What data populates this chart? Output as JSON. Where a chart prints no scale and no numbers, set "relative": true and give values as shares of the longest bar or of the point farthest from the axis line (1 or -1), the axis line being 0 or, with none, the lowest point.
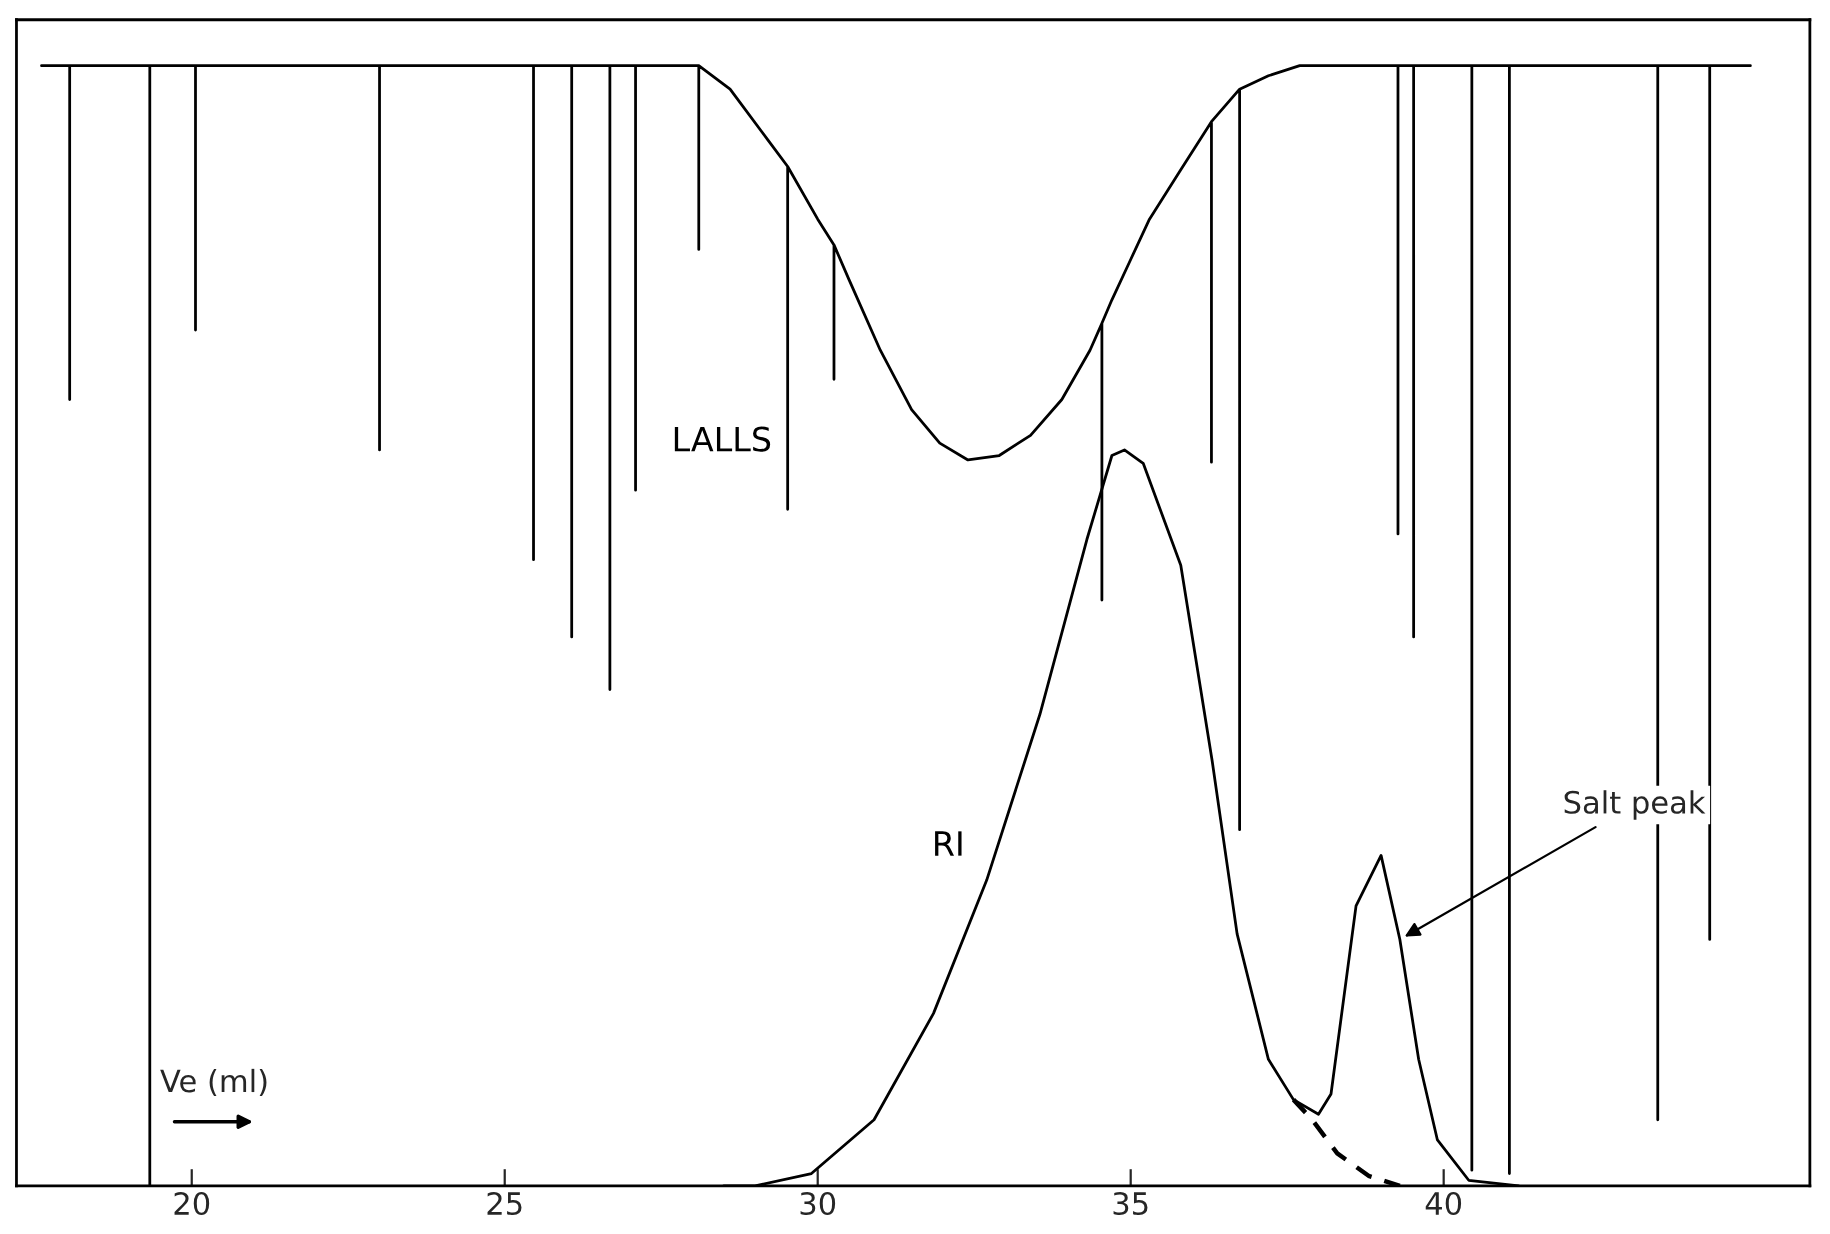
{
  "chart_data": {
    "type": "line",
    "relative": true,
    "xlabel": "Ve (ml)",
    "xlim": [
      17.2,
      45.85
    ],
    "xticks": [
      20,
      25,
      30,
      35,
      40
    ],
    "series": [
      {
        "name": "LALLS",
        "color": "#000000",
        "x": [
          17.6,
          18.05,
          18.05,
          18.05,
          19.33,
          19.33,
          19.33,
          20.06,
          20.06,
          20.06,
          23.0,
          23.0,
          23.0,
          25.46,
          25.46,
          25.46,
          26.07,
          26.07,
          26.07,
          26.68,
          26.68,
          26.68,
          27.09,
          27.09,
          27.09,
          27.96,
          28.1,
          28.1,
          28.1,
          28.6,
          29.2,
          29.52,
          29.52,
          29.52,
          30.0,
          30.26,
          30.26,
          30.26,
          30.5,
          31.0,
          31.5,
          31.95,
          32.4,
          32.9,
          33.4,
          33.9,
          34.35,
          34.54,
          34.54,
          34.54,
          34.7,
          35.0,
          35.3,
          35.8,
          36.29,
          36.29,
          36.29,
          36.74,
          36.74,
          36.74,
          37.2,
          37.7,
          39.27,
          39.27,
          39.27,
          39.52,
          39.52,
          39.52,
          40.45,
          40.45,
          40.45,
          41.05,
          41.05,
          41.05,
          43.42,
          43.42,
          43.42,
          44.25,
          44.25,
          44.25,
          44.9
        ],
        "values": [
          1.0,
          1.0,
          0.702,
          1.0,
          1.0,
          0.0,
          1.0,
          1.0,
          0.764,
          1.0,
          1.0,
          0.657,
          1.0,
          1.0,
          0.559,
          1.0,
          1.0,
          0.49,
          1.0,
          1.0,
          0.443,
          1.0,
          1.0,
          0.621,
          1.0,
          1.0,
          1.0,
          0.836,
          1.0,
          0.979,
          0.934,
          0.91,
          0.604,
          0.91,
          0.863,
          0.84,
          0.72,
          0.84,
          0.809,
          0.746,
          0.693,
          0.663,
          0.648,
          0.652,
          0.67,
          0.702,
          0.746,
          0.77,
          0.523,
          0.77,
          0.791,
          0.827,
          0.863,
          0.907,
          0.95,
          0.646,
          0.95,
          0.979,
          0.318,
          0.979,
          0.991,
          1.0,
          1.0,
          0.582,
          1.0,
          1.0,
          0.49,
          1.0,
          1.0,
          0.014,
          1.0,
          1.0,
          0.011,
          1.0,
          1.0,
          0.059,
          1.0,
          1.0,
          0.22,
          1.0,
          1.0
        ]
      },
      {
        "name": "RI",
        "color": "#000000",
        "x": [
          28.5,
          29.0,
          29.9,
          30.9,
          31.85,
          32.7,
          33.55,
          34.3,
          34.7,
          34.9,
          35.2,
          35.8,
          36.3,
          36.7,
          37.2,
          37.6,
          38.0,
          38.2,
          38.6,
          39.0,
          39.3,
          39.6,
          39.9,
          40.4,
          41.2
        ],
        "values": [
          0.0,
          0.0,
          0.011,
          0.059,
          0.154,
          0.273,
          0.421,
          0.577,
          0.652,
          0.657,
          0.645,
          0.554,
          0.38,
          0.225,
          0.113,
          0.077,
          0.064,
          0.082,
          0.25,
          0.295,
          0.22,
          0.113,
          0.041,
          0.005,
          0.0
        ]
      },
      {
        "color": "#000000",
        "line_style": "dashed",
        "x": [
          37.6,
          37.9,
          38.3,
          38.8,
          39.3
        ],
        "values": [
          0.077,
          0.059,
          0.029,
          0.009,
          0.0
        ]
      }
    ],
    "annotations": [
      {
        "text": "Salt peak",
        "x": 39.3,
        "y": 0.22
      }
    ]
  }
}
